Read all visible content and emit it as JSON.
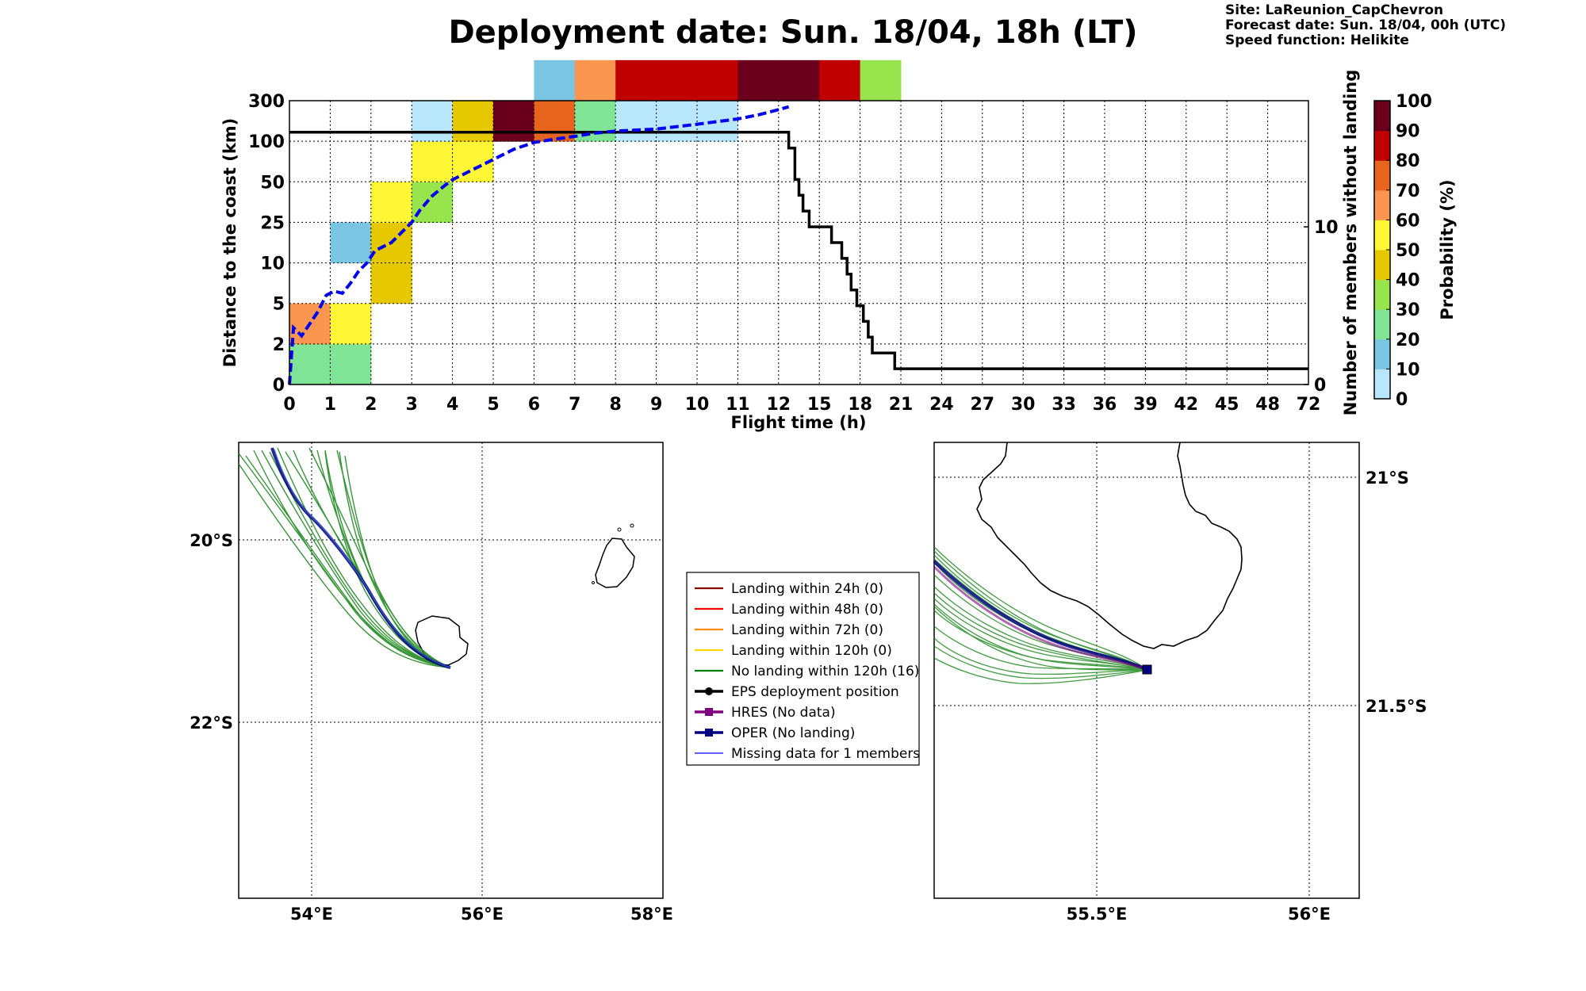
{
  "title": "Deployment date: Sun. 18/04, 18h (LT)",
  "info": {
    "site": "Site: LaReunion_CapChevron",
    "forecast": "Forecast date: Sun. 18/04, 00h (UTC)",
    "speed": "Speed function: Helikite"
  },
  "colors": {
    "prob_bins": [
      "#b8e6fb",
      "#7ac6e2",
      "#80e496",
      "#98e44c",
      "#e6c800",
      "#fff636",
      "#fa9650",
      "#e6641e",
      "#c00000",
      "#6a001c"
    ]
  },
  "chart_data": [
    {
      "type": "heatmap",
      "xlabel": "Flight time (h)",
      "ylabel": "Distance to the coast (km)",
      "y2label": "Number of members without landing",
      "x_tick_labels": [
        "0",
        "1",
        "2",
        "3",
        "4",
        "5",
        "6",
        "7",
        "8",
        "9",
        "10",
        "11",
        "12",
        "15",
        "18",
        "21",
        "24",
        "27",
        "30",
        "33",
        "36",
        "39",
        "42",
        "45",
        "48",
        "72"
      ],
      "y_tick_labels": [
        "0",
        "2",
        "5",
        "10",
        "25",
        "50",
        "100",
        "300"
      ],
      "y2_ticks": [
        0,
        10
      ],
      "y2_range": [
        0,
        18
      ],
      "grid": true,
      "colorbar": {
        "label": "Probability (%)",
        "tick_labels": [
          "0",
          "10",
          "20",
          "30",
          "40",
          "50",
          "60",
          "70",
          "80",
          "90",
          "100"
        ]
      },
      "cells": [
        {
          "x": 0,
          "y": 0,
          "prob": 20
        },
        {
          "x": 1,
          "y": 0,
          "prob": 20
        },
        {
          "x": 0,
          "y": 1,
          "prob": 60
        },
        {
          "x": 1,
          "y": 1,
          "prob": 50
        },
        {
          "x": 1,
          "y": 3,
          "prob": 10
        },
        {
          "x": 2,
          "y": 2,
          "prob": 40
        },
        {
          "x": 2,
          "y": 3,
          "prob": 40
        },
        {
          "x": 2,
          "y": 4,
          "prob": 50
        },
        {
          "x": 3,
          "y": 4,
          "prob": 30
        },
        {
          "x": 3,
          "y": 5,
          "prob": 50
        },
        {
          "x": 4,
          "y": 5,
          "prob": 50
        },
        {
          "x": 3,
          "y": 6,
          "prob": 0
        },
        {
          "x": 4,
          "y": 6,
          "prob": 40
        },
        {
          "x": 5,
          "y": 6,
          "prob": 90
        },
        {
          "x": 6,
          "y": 6,
          "prob": 70
        },
        {
          "x": 7,
          "y": 6,
          "prob": 20
        },
        {
          "x": 8,
          "y": 6,
          "prob": 0
        },
        {
          "x": 9,
          "y": 6,
          "prob": 0
        },
        {
          "x": 10,
          "y": 6,
          "prob": 0
        },
        {
          "x": 6,
          "y": 7,
          "prob": 10
        },
        {
          "x": 7,
          "y": 7,
          "prob": 60
        },
        {
          "x": 8,
          "y": 7,
          "prob": 80
        },
        {
          "x": 9,
          "y": 7,
          "prob": 80
        },
        {
          "x": 10,
          "y": 7,
          "prob": 80
        },
        {
          "x": 11,
          "y": 7,
          "prob": 90
        },
        {
          "x": 12,
          "y": 7,
          "prob": 90
        },
        {
          "x": 13,
          "y": 7,
          "prob": 80
        },
        {
          "x": 14,
          "y": 7,
          "prob": 30
        }
      ],
      "mean_distance_line": [
        [
          0,
          0
        ],
        [
          0.1,
          1.4
        ],
        [
          0.3,
          1.2
        ],
        [
          0.5,
          1.5
        ],
        [
          0.7,
          1.8
        ],
        [
          0.9,
          2.2
        ],
        [
          1.1,
          2.3
        ],
        [
          1.3,
          2.25
        ],
        [
          1.5,
          2.5
        ],
        [
          1.7,
          2.8
        ],
        [
          1.9,
          3.0
        ],
        [
          2.1,
          3.3
        ],
        [
          2.3,
          3.4
        ],
        [
          2.5,
          3.5
        ],
        [
          2.8,
          3.8
        ],
        [
          3.0,
          4.0
        ],
        [
          3.2,
          4.3
        ],
        [
          3.5,
          4.65
        ],
        [
          3.8,
          4.9
        ],
        [
          4.0,
          5.05
        ],
        [
          4.5,
          5.3
        ],
        [
          5.0,
          5.55
        ],
        [
          5.5,
          5.8
        ],
        [
          6.0,
          5.97
        ],
        [
          6.5,
          6.05
        ],
        [
          7.0,
          6.12
        ],
        [
          7.5,
          6.2
        ],
        [
          8.0,
          6.25
        ],
        [
          9.0,
          6.3
        ],
        [
          10.0,
          6.42
        ],
        [
          11.0,
          6.55
        ],
        [
          11.5,
          6.65
        ],
        [
          12.0,
          6.78
        ],
        [
          12.25,
          6.85
        ]
      ],
      "members_without_landing": [
        [
          0,
          16
        ],
        [
          12.25,
          16
        ],
        [
          12.25,
          15
        ],
        [
          12.4,
          15
        ],
        [
          12.4,
          13
        ],
        [
          12.5,
          13
        ],
        [
          12.5,
          12
        ],
        [
          12.6,
          12
        ],
        [
          12.6,
          11
        ],
        [
          12.75,
          11
        ],
        [
          12.75,
          10
        ],
        [
          13.3,
          10
        ],
        [
          13.3,
          9
        ],
        [
          13.55,
          9
        ],
        [
          13.55,
          8
        ],
        [
          13.68,
          8
        ],
        [
          13.68,
          7
        ],
        [
          13.78,
          7
        ],
        [
          13.78,
          6
        ],
        [
          13.92,
          6
        ],
        [
          13.92,
          5
        ],
        [
          14.08,
          5
        ],
        [
          14.08,
          4
        ],
        [
          14.2,
          4
        ],
        [
          14.2,
          3
        ],
        [
          14.3,
          3
        ],
        [
          14.3,
          2
        ],
        [
          14.85,
          2
        ],
        [
          14.85,
          1
        ],
        [
          25,
          1
        ]
      ]
    },
    {
      "type": "map",
      "lon_ticks": [
        "54°E",
        "56°E",
        "58°E"
      ],
      "lat_ticks": [
        "20°S",
        "22°S"
      ],
      "lon_range": [
        53.1,
        58.1
      ],
      "lat_range": [
        -23.95,
        -18.95
      ]
    },
    {
      "type": "map",
      "lon_ticks": [
        "55.5°E",
        "56°E"
      ],
      "lat_ticks": [
        "21°S",
        "21.5°S"
      ],
      "lon_range": [
        55.1,
        56.12
      ],
      "lat_range": [
        -21.92,
        -20.92
      ]
    }
  ],
  "legend": {
    "items": [
      {
        "label": "Landing within 24h (0)",
        "color": "#8b0000",
        "marker": "line"
      },
      {
        "label": "Landing within 48h (0)",
        "color": "#ff0000",
        "marker": "line"
      },
      {
        "label": "Landing within 72h (0)",
        "color": "#ff8c00",
        "marker": "line"
      },
      {
        "label": "Landing within 120h (0)",
        "color": "#ffd700",
        "marker": "line"
      },
      {
        "label": "No landing within 120h (16)",
        "color": "#008000",
        "marker": "line"
      },
      {
        "label": "EPS deployment position",
        "color": "#000000",
        "marker": "circle"
      },
      {
        "label": "HRES (No data)",
        "color": "#800080",
        "marker": "square"
      },
      {
        "label": "OPER (No landing)",
        "color": "#000080",
        "marker": "square"
      },
      {
        "label": "Missing data for 1 members",
        "color": "#0000ff",
        "marker": "thin"
      }
    ]
  }
}
